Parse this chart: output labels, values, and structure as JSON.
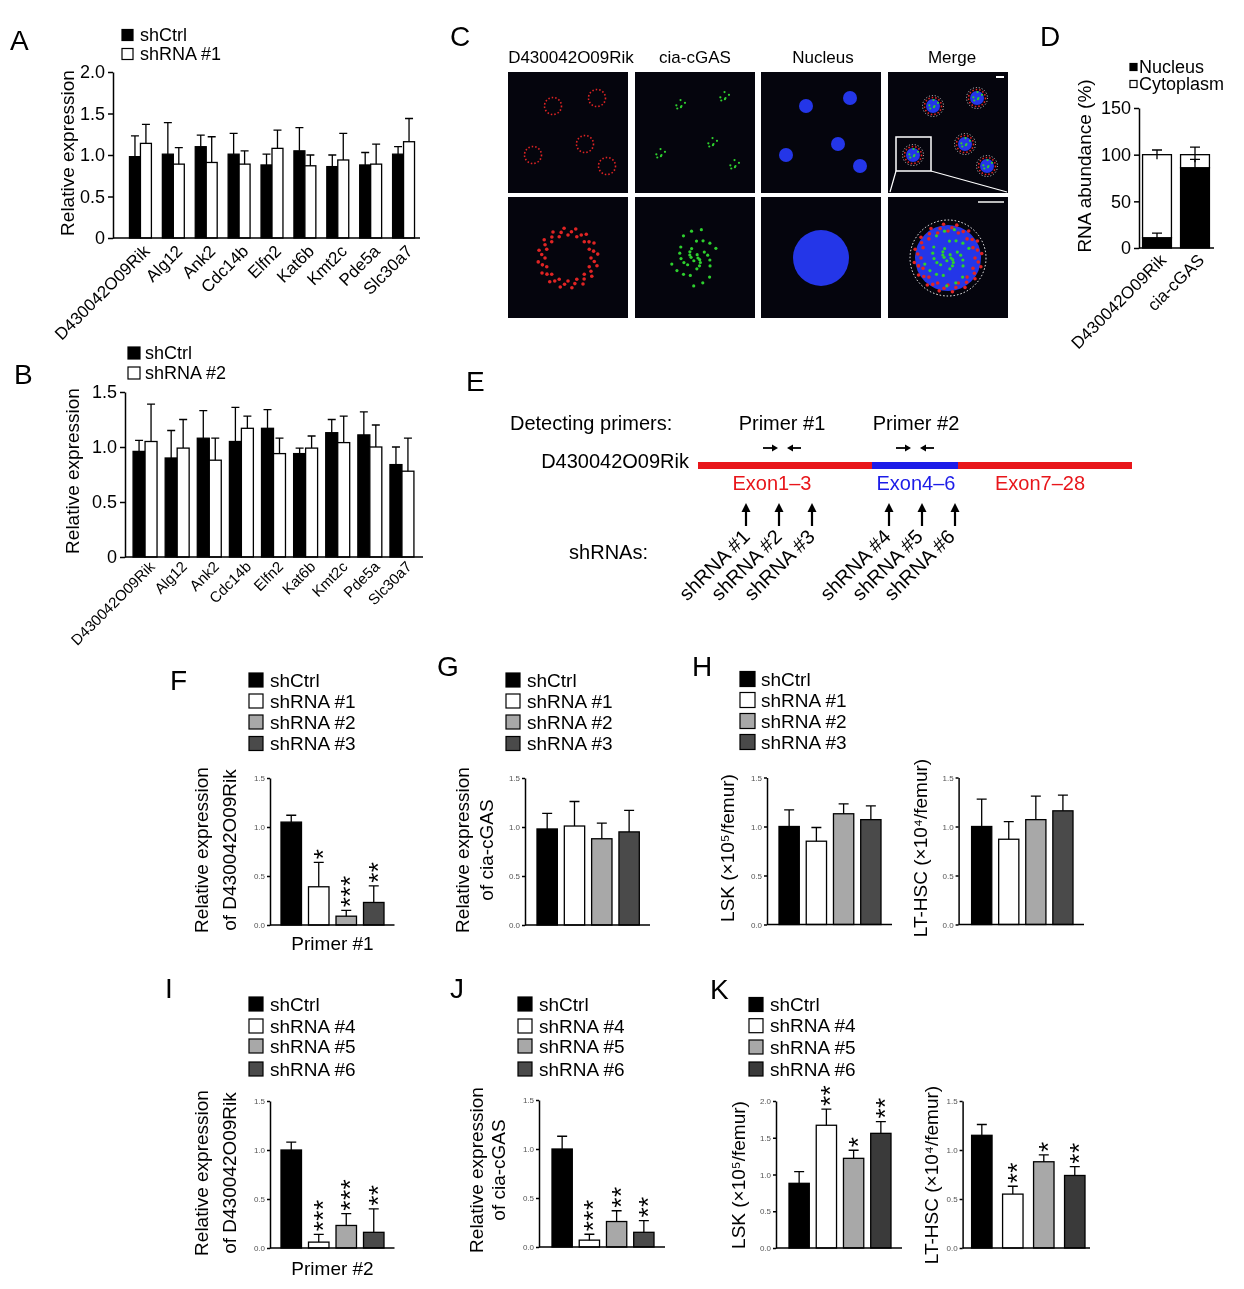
{
  "chart_data": [
    {
      "type": "bar",
      "title": "A",
      "ylabel": "Relative expression",
      "categories": [
        "D430042O09Rik",
        "Alg12",
        "Ank2",
        "Cdc14b",
        "Elfn2",
        "Kat6b",
        "Kmt2c",
        "Pde5a",
        "Slc30a7"
      ],
      "series": [
        {
          "name": "shCtrl",
          "color": "#000000",
          "values": [
            0.98,
            1.01,
            1.1,
            1.01,
            0.88,
            1.05,
            0.86,
            0.88,
            1.01
          ],
          "errors": [
            [
              0.98,
              1.23
            ],
            [
              1.01,
              1.39
            ],
            [
              1.1,
              1.24
            ],
            [
              1.01,
              1.26
            ],
            [
              0.88,
              1.01
            ],
            [
              1.05,
              1.33
            ],
            [
              0.86,
              1.0
            ],
            [
              0.88,
              1.03
            ],
            [
              1.01,
              1.1
            ]
          ]
        },
        {
          "name": "shRNA #1",
          "color": "#ffffff",
          "values": [
            1.14,
            0.89,
            0.91,
            0.89,
            1.08,
            0.87,
            0.94,
            0.89,
            1.16
          ],
          "errors": [
            [
              1.14,
              1.37
            ],
            [
              0.89,
              1.09
            ],
            [
              0.91,
              1.22
            ],
            [
              0.89,
              1.05
            ],
            [
              1.08,
              1.3
            ],
            [
              0.87,
              1.0
            ],
            [
              0.94,
              1.26
            ],
            [
              0.89,
              1.13
            ],
            [
              1.16,
              1.44
            ]
          ]
        }
      ],
      "ylim": [
        0,
        2
      ],
      "yticks": [
        0,
        0.5,
        {
          "value": 1,
          "label": "1.0"
        },
        1.5,
        {
          "value": 2,
          "label": "2.0"
        }
      ],
      "legend": "top left"
    },
    {
      "type": "other",
      "title": "C",
      "annotations": [
        "D430042O09Rik",
        "cia-cGAS",
        "Nucleus",
        "Merge"
      ]
    },
    {
      "type": "bar",
      "title": "D",
      "ylabel": "RNA abundance (%)",
      "categories": [
        "D430042O09Rik",
        "cia-cGAS"
      ],
      "stacked": true,
      "series": [
        {
          "name": "Nucleus",
          "color": "#000000",
          "values": [
            11,
            86
          ],
          "errors": [
            5,
            9
          ]
        },
        {
          "name": "Cytoplasm",
          "color": "#ffffff",
          "values": [
            89,
            14
          ],
          "errors": [
            5,
            8
          ]
        }
      ],
      "ylim": [
        0,
        150
      ],
      "yticks": [
        0,
        50,
        100,
        150
      ],
      "legend": "top left"
    },
    {
      "type": "bar",
      "title": "B",
      "ylabel": "Relative expression",
      "categories": [
        "D430042O09Rik",
        "Alg12",
        "Ank2",
        "Cdc14b",
        "Elfn2",
        "Kat6b",
        "Kmt2c",
        "Pde5a",
        "Slc30a7"
      ],
      "series": [
        {
          "name": "shCtrl",
          "color": "#000000",
          "values": [
            0.96,
            0.9,
            1.08,
            1.05,
            1.17,
            0.94,
            1.13,
            1.11,
            0.84
          ],
          "errors": [
            [
              0.96,
              1.06
            ],
            [
              0.9,
              1.15
            ],
            [
              1.08,
              1.33
            ],
            [
              1.05,
              1.36
            ],
            [
              1.17,
              1.34
            ],
            [
              0.94,
              0.99
            ],
            [
              1.13,
              1.25
            ],
            [
              1.11,
              1.32
            ],
            [
              0.84,
              1.0
            ]
          ]
        },
        {
          "name": "shRNA #2",
          "color": "#ffffff",
          "values": [
            1.05,
            0.99,
            0.88,
            1.17,
            0.94,
            0.99,
            1.04,
            1.0,
            0.78
          ],
          "errors": [
            [
              1.05,
              1.39
            ],
            [
              0.99,
              1.25
            ],
            [
              0.88,
              1.08
            ],
            [
              1.17,
              1.28
            ],
            [
              0.94,
              1.08
            ],
            [
              0.99,
              1.1
            ],
            [
              1.04,
              1.28
            ],
            [
              1.0,
              1.2
            ],
            [
              0.78,
              1.08
            ]
          ]
        }
      ],
      "ylim": [
        0,
        1.5
      ],
      "yticks": [
        0,
        0.5,
        {
          "value": 1,
          "label": "1.0"
        },
        1.5
      ],
      "legend": "top left"
    },
    {
      "type": "other",
      "title": "E",
      "annotations": [
        "Detecting primers:",
        "Primer #1",
        "Primer #2",
        "D430042O09Rik",
        "Exon1–3",
        "Exon4–6",
        "Exon7–28",
        "shRNAs:",
        "shRNA #1",
        "shRNA #2",
        "shRNA #3",
        "shRNA #4",
        "shRNA #5",
        "shRNA #6"
      ]
    },
    {
      "type": "bar",
      "title": "F",
      "ylabel": "Relative expression\nof D430042O09Rik",
      "categories": [
        "Primer #1"
      ],
      "series": [
        {
          "name": "shCtrl",
          "color": "#000000",
          "values": [
            1.05
          ],
          "errors": [
            [
              1.05,
              1.12
            ]
          ]
        },
        {
          "name": "shRNA #1",
          "color": "#ffffff",
          "values": [
            0.39
          ],
          "errors": [
            [
              0.39,
              0.64
            ]
          ],
          "value_labels": [
            "*"
          ]
        },
        {
          "name": "shRNA #2",
          "color": "#a8a8a8",
          "values": [
            0.09
          ],
          "errors": [
            [
              0.09,
              0.15
            ]
          ],
          "value_labels": [
            "***"
          ]
        },
        {
          "name": "shRNA #3",
          "color": "#4a4a4a",
          "values": [
            0.23
          ],
          "errors": [
            [
              0.23,
              0.4
            ]
          ],
          "value_labels": [
            "**"
          ]
        }
      ],
      "ylim": [
        0,
        1.5
      ],
      "yticks": [
        {
          "value": 0,
          "label": "0.0"
        },
        0.5,
        {
          "value": 1,
          "label": "1.0"
        },
        1.5
      ],
      "legend": "top left"
    },
    {
      "type": "bar",
      "title": "G",
      "ylabel": "Relative expression\nof cia-cGAS",
      "categories": [
        null
      ],
      "series": [
        {
          "name": "shCtrl",
          "color": "#000000",
          "values": [
            0.98
          ],
          "errors": [
            [
              0.98,
              1.14
            ]
          ]
        },
        {
          "name": "shRNA #1",
          "color": "#ffffff",
          "values": [
            1.01
          ],
          "errors": [
            [
              1.01,
              1.26
            ]
          ]
        },
        {
          "name": "shRNA #2",
          "color": "#a8a8a8",
          "values": [
            0.88
          ],
          "errors": [
            [
              0.88,
              1.04
            ]
          ]
        },
        {
          "name": "shRNA #3",
          "color": "#4a4a4a",
          "values": [
            0.95
          ],
          "errors": [
            [
              0.95,
              1.17
            ]
          ]
        }
      ],
      "ylim": [
        0,
        1.5
      ],
      "yticks": [
        {
          "value": 0,
          "label": "0.0"
        },
        0.5,
        {
          "value": 1,
          "label": "1.0"
        },
        1.5
      ],
      "legend": "top left"
    },
    {
      "type": "bar",
      "title": "H",
      "ylabel": "LSK (×10⁵/femur)",
      "categories": [
        null
      ],
      "series": [
        {
          "name": "shCtrl",
          "color": "#000000",
          "values": [
            1.0
          ],
          "errors": [
            [
              1.0,
              1.17
            ]
          ]
        },
        {
          "name": "shRNA #1",
          "color": "#ffffff",
          "values": [
            0.85
          ],
          "errors": [
            [
              0.85,
              0.99
            ]
          ]
        },
        {
          "name": "shRNA #2",
          "color": "#a8a8a8",
          "values": [
            1.13
          ],
          "errors": [
            [
              1.13,
              1.23
            ]
          ]
        },
        {
          "name": "shRNA #3",
          "color": "#4a4a4a",
          "values": [
            1.07
          ],
          "errors": [
            [
              1.07,
              1.21
            ]
          ]
        }
      ],
      "ylim": [
        0,
        1.5
      ],
      "yticks": [
        {
          "value": 0,
          "label": "0.0"
        },
        0.5,
        {
          "value": 1,
          "label": "1.0"
        },
        1.5
      ],
      "legend": "top left"
    },
    {
      "type": "bar",
      "ylabel": "LT-HSC (×10⁴/femur)",
      "categories": [
        null
      ],
      "series": [
        {
          "color": "#000000",
          "values": [
            1.0
          ],
          "errors": [
            [
              1.0,
              1.28
            ]
          ]
        },
        {
          "color": "#ffffff",
          "values": [
            0.87
          ],
          "errors": [
            [
              0.87,
              1.05
            ]
          ]
        },
        {
          "color": "#a8a8a8",
          "values": [
            1.07
          ],
          "errors": [
            [
              1.07,
              1.31
            ]
          ]
        },
        {
          "color": "#4a4a4a",
          "values": [
            1.16
          ],
          "errors": [
            [
              1.16,
              1.32
            ]
          ]
        }
      ],
      "ylim": [
        0,
        1.5
      ],
      "yticks": [
        {
          "value": 0,
          "label": "0.0"
        },
        0.5,
        {
          "value": 1,
          "label": "1.0"
        },
        1.5
      ]
    },
    {
      "type": "bar",
      "title": "I",
      "ylabel": "Relative expression\nof D430042O09Rik",
      "categories": [
        "Primer #2"
      ],
      "series": [
        {
          "name": "shCtrl",
          "color": "#000000",
          "values": [
            1.0
          ],
          "errors": [
            [
              1.0,
              1.08
            ]
          ]
        },
        {
          "name": "shRNA #4",
          "color": "#ffffff",
          "values": [
            0.06
          ],
          "errors": [
            [
              0.06,
              0.14
            ]
          ],
          "value_labels": [
            "***"
          ]
        },
        {
          "name": "shRNA #5",
          "color": "#a8a8a8",
          "values": [
            0.23
          ],
          "errors": [
            [
              0.23,
              0.35
            ]
          ],
          "value_labels": [
            "***"
          ]
        },
        {
          "name": "shRNA #6",
          "color": "#4a4a4a",
          "values": [
            0.16
          ],
          "errors": [
            [
              0.16,
              0.4
            ]
          ],
          "value_labels": [
            "**"
          ]
        }
      ],
      "ylim": [
        0,
        1.5
      ],
      "yticks": [
        {
          "value": 0,
          "label": "0.0"
        },
        0.5,
        {
          "value": 1,
          "label": "1.0"
        },
        1.5
      ],
      "legend": "top left"
    },
    {
      "type": "bar",
      "title": "J",
      "ylabel": "Relative expression\nof cia-cGAS",
      "categories": [
        null
      ],
      "series": [
        {
          "name": "shCtrl",
          "color": "#000000",
          "values": [
            1.0
          ],
          "errors": [
            [
              1.0,
              1.13
            ]
          ]
        },
        {
          "name": "shRNA #4",
          "color": "#ffffff",
          "values": [
            0.07
          ],
          "errors": [
            [
              0.07,
              0.13
            ]
          ],
          "value_labels": [
            "***"
          ]
        },
        {
          "name": "shRNA #5",
          "color": "#a8a8a8",
          "values": [
            0.26
          ],
          "errors": [
            [
              0.26,
              0.37
            ]
          ],
          "value_labels": [
            "**"
          ]
        },
        {
          "name": "shRNA #6",
          "color": "#4a4a4a",
          "values": [
            0.15
          ],
          "errors": [
            [
              0.15,
              0.27
            ]
          ],
          "value_labels": [
            "**"
          ]
        }
      ],
      "ylim": [
        0,
        1.5
      ],
      "yticks": [
        {
          "value": 0,
          "label": "0.0"
        },
        0.5,
        {
          "value": 1,
          "label": "1.0"
        },
        1.5
      ],
      "legend": "top left"
    },
    {
      "type": "bar",
      "title": "K",
      "ylabel": "LSK (×10⁵/femur)",
      "categories": [
        null
      ],
      "series": [
        {
          "name": "shCtrl",
          "color": "#000000",
          "values": [
            0.88
          ],
          "errors": [
            [
              0.88,
              1.04
            ]
          ]
        },
        {
          "name": "shRNA #4",
          "color": "#ffffff",
          "values": [
            1.67
          ],
          "errors": [
            [
              1.67,
              1.89
            ]
          ],
          "value_labels": [
            "**"
          ]
        },
        {
          "name": "shRNA #5",
          "color": "#a8a8a8",
          "values": [
            1.22
          ],
          "errors": [
            [
              1.22,
              1.33
            ]
          ],
          "value_labels": [
            "*"
          ]
        },
        {
          "name": "shRNA #6",
          "color": "#3a3a3a",
          "values": [
            1.56
          ],
          "errors": [
            [
              1.56,
              1.72
            ]
          ],
          "value_labels": [
            "**"
          ]
        }
      ],
      "ylim": [
        0,
        2
      ],
      "yticks": [
        {
          "value": 0,
          "label": "0.0"
        },
        0.5,
        {
          "value": 1,
          "label": "1.0"
        },
        1.5,
        {
          "value": 2,
          "label": "2.0"
        }
      ],
      "legend": "top left"
    },
    {
      "type": "bar",
      "ylabel": "LT-HSC (×10⁴/femur)",
      "categories": [
        null
      ],
      "series": [
        {
          "color": "#000000",
          "values": [
            1.15
          ],
          "errors": [
            [
              1.15,
              1.26
            ]
          ]
        },
        {
          "color": "#ffffff",
          "values": [
            0.55
          ],
          "errors": [
            [
              0.55,
              0.63
            ]
          ],
          "value_labels": [
            "**"
          ]
        },
        {
          "color": "#a8a8a8",
          "values": [
            0.88
          ],
          "errors": [
            [
              0.88,
              0.95
            ]
          ],
          "value_labels": [
            "*"
          ]
        },
        {
          "color": "#3a3a3a",
          "values": [
            0.74
          ],
          "errors": [
            [
              0.74,
              0.83
            ]
          ],
          "value_labels": [
            "**"
          ]
        }
      ],
      "ylim": [
        0,
        1.5
      ],
      "yticks": [
        {
          "value": 0,
          "label": "0.0"
        },
        0.5,
        {
          "value": 1,
          "label": "1.0"
        },
        1.5
      ]
    }
  ]
}
